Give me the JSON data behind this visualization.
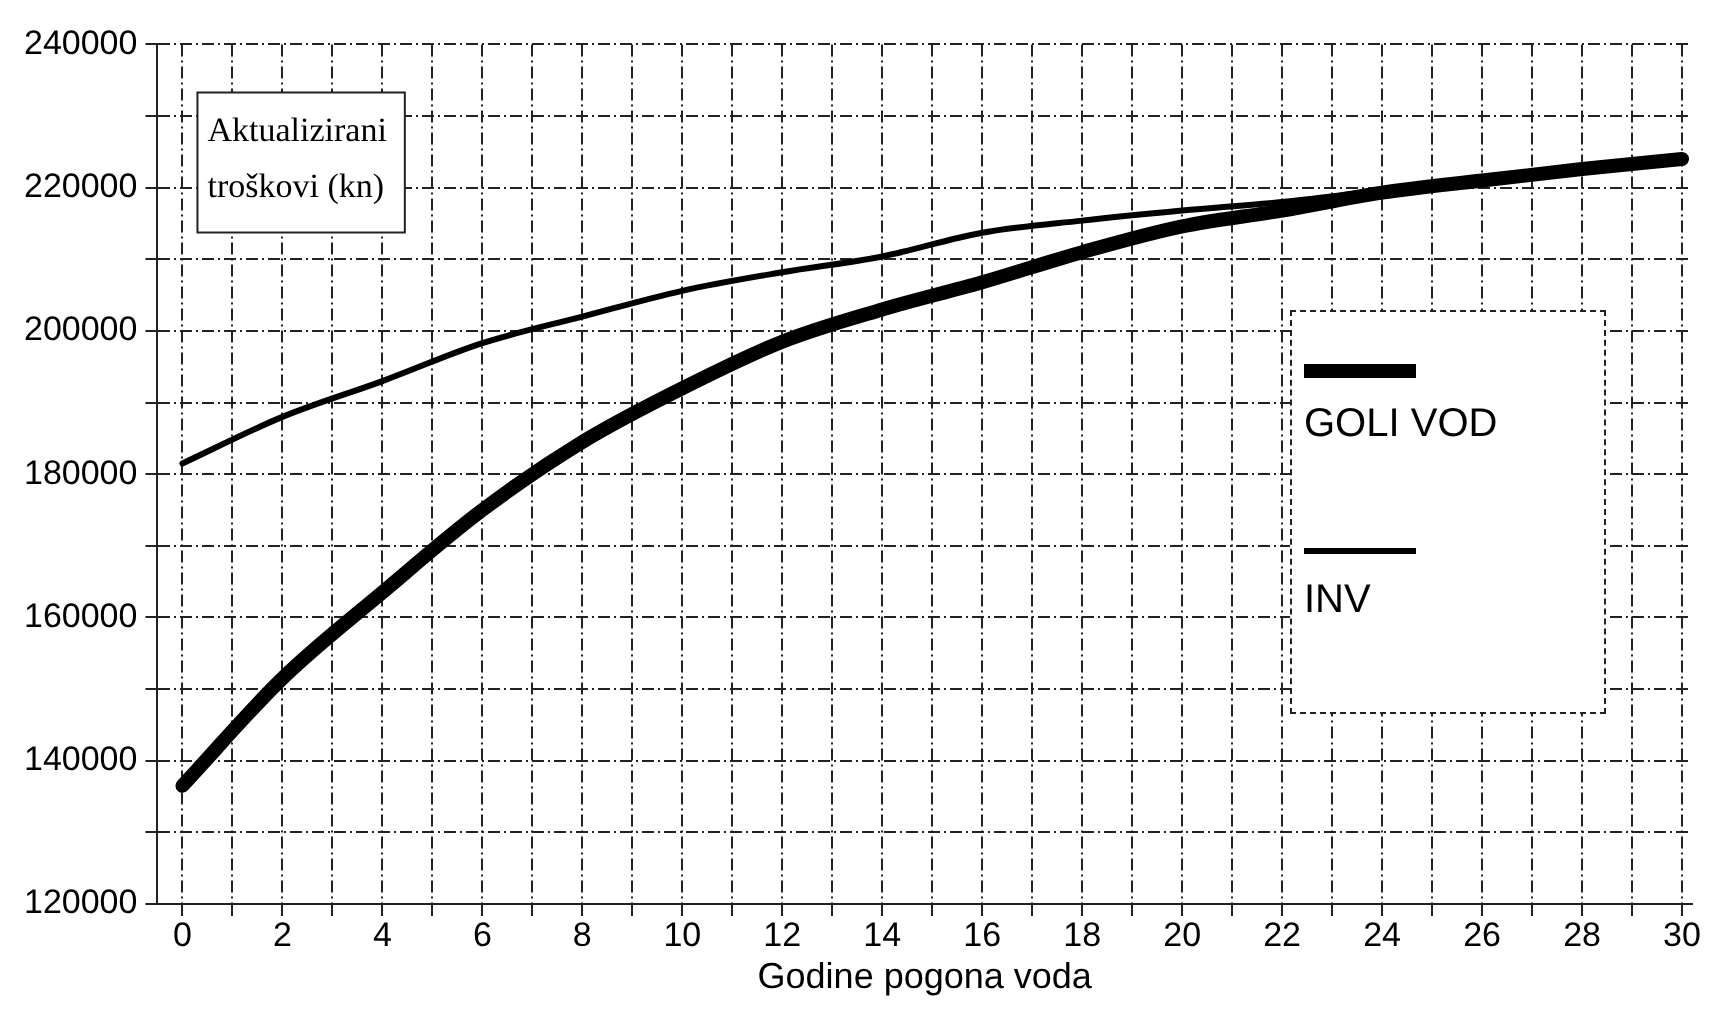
{
  "chart_data": {
    "type": "line",
    "xlabel": "Godine pogona voda",
    "ylabel": "Aktualizirani troškovi (kn)",
    "x": [
      0,
      2,
      4,
      6,
      8,
      10,
      12,
      14,
      16,
      18,
      20,
      22,
      24,
      26,
      28,
      30
    ],
    "series": [
      {
        "name": "GOLI VOD",
        "color": "#000000",
        "values": [
          136500,
          151500,
          163500,
          175000,
          184500,
          192000,
          198500,
          203000,
          206800,
          211000,
          214600,
          216800,
          219300,
          221000,
          222600,
          224000
        ]
      },
      {
        "name": "INV",
        "color": "#000000",
        "values": [
          181500,
          188000,
          193000,
          198300,
          202000,
          205600,
          208200,
          210400,
          213700,
          215400,
          216800,
          218000,
          219600,
          221000,
          222400,
          223600
        ]
      }
    ],
    "xlim": [
      -0.5,
      30.2
    ],
    "xticks": [
      0,
      {
        "value": 1,
        "label": null
      },
      2,
      {
        "value": 3,
        "label": null
      },
      4,
      {
        "value": 5,
        "label": null
      },
      6,
      {
        "value": 7,
        "label": null
      },
      8,
      {
        "value": 9,
        "label": null
      },
      10,
      {
        "value": 11,
        "label": null
      },
      12,
      {
        "value": 13,
        "label": null
      },
      14,
      {
        "value": 15,
        "label": null
      },
      16,
      {
        "value": 17,
        "label": null
      },
      18,
      {
        "value": 19,
        "label": null
      },
      20,
      {
        "value": 21,
        "label": null
      },
      22,
      {
        "value": 23,
        "label": null
      },
      24,
      {
        "value": 25,
        "label": null
      },
      26,
      {
        "value": 27,
        "label": null
      },
      28,
      {
        "value": 29,
        "label": null
      },
      30
    ],
    "ylim": [
      120000,
      240000
    ],
    "yticks": [
      120000,
      {
        "value": 130000,
        "label": null
      },
      140000,
      {
        "value": 150000,
        "label": null
      },
      160000,
      {
        "value": 170000,
        "label": null
      },
      180000,
      {
        "value": 190000,
        "label": null
      },
      200000,
      {
        "value": 210000,
        "label": null
      },
      220000,
      {
        "value": 230000,
        "label": null
      },
      240000
    ],
    "grid": true,
    "legend": "right",
    "marker": "none",
    "line_style": "solid"
  }
}
